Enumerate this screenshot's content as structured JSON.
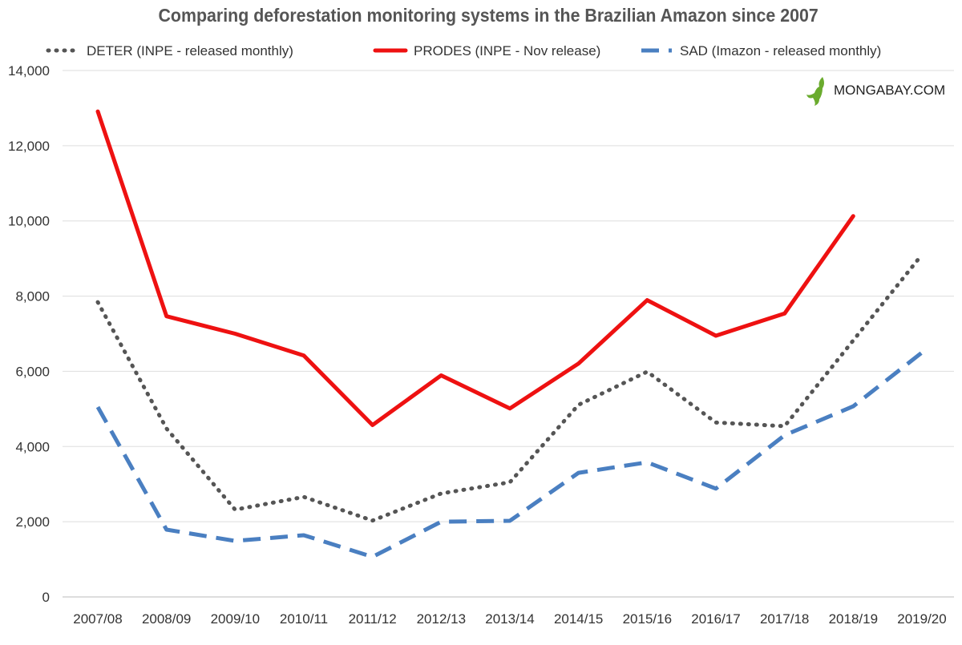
{
  "chart_data": {
    "type": "line",
    "title": "Comparing deforestation monitoring systems in the Brazilian Amazon since 2007",
    "xlabel": "",
    "ylabel": "",
    "ylim": [
      0,
      14000
    ],
    "yticks": [
      0,
      2000,
      4000,
      6000,
      8000,
      10000,
      12000,
      14000
    ],
    "ytick_labels": [
      "0",
      "2,000",
      "4,000",
      "6,000",
      "8,000",
      "10,000",
      "12,000",
      "14,000"
    ],
    "grid": true,
    "legend_position": "top",
    "categories": [
      "2007/08",
      "2008/09",
      "2009/10",
      "2010/11",
      "2011/12",
      "2012/13",
      "2013/14",
      "2014/15",
      "2015/16",
      "2016/17",
      "2017/18",
      "2018/19",
      "2019/20"
    ],
    "series": [
      {
        "name": "DETER (INPE - released monthly)",
        "color": "#555555",
        "style": "dotted",
        "values": [
          7840,
          4480,
          2320,
          2660,
          2030,
          2750,
          3050,
          5110,
          5990,
          4640,
          4540,
          6820,
          9100
        ]
      },
      {
        "name": "PRODES (INPE - Nov release)",
        "color": "#ee1111",
        "style": "solid",
        "values": [
          12911,
          7464,
          7000,
          6418,
          4571,
          5891,
          5012,
          6207,
          7893,
          6947,
          7536,
          10129,
          null
        ]
      },
      {
        "name": "SAD (Imazon - released monthly)",
        "color": "#4a7fc1",
        "style": "dashed",
        "values": [
          5050,
          1790,
          1490,
          1640,
          1065,
          2000,
          2025,
          3300,
          3580,
          2880,
          4300,
          5070,
          6500
        ]
      }
    ]
  },
  "watermark": "MONGABAY.COM"
}
